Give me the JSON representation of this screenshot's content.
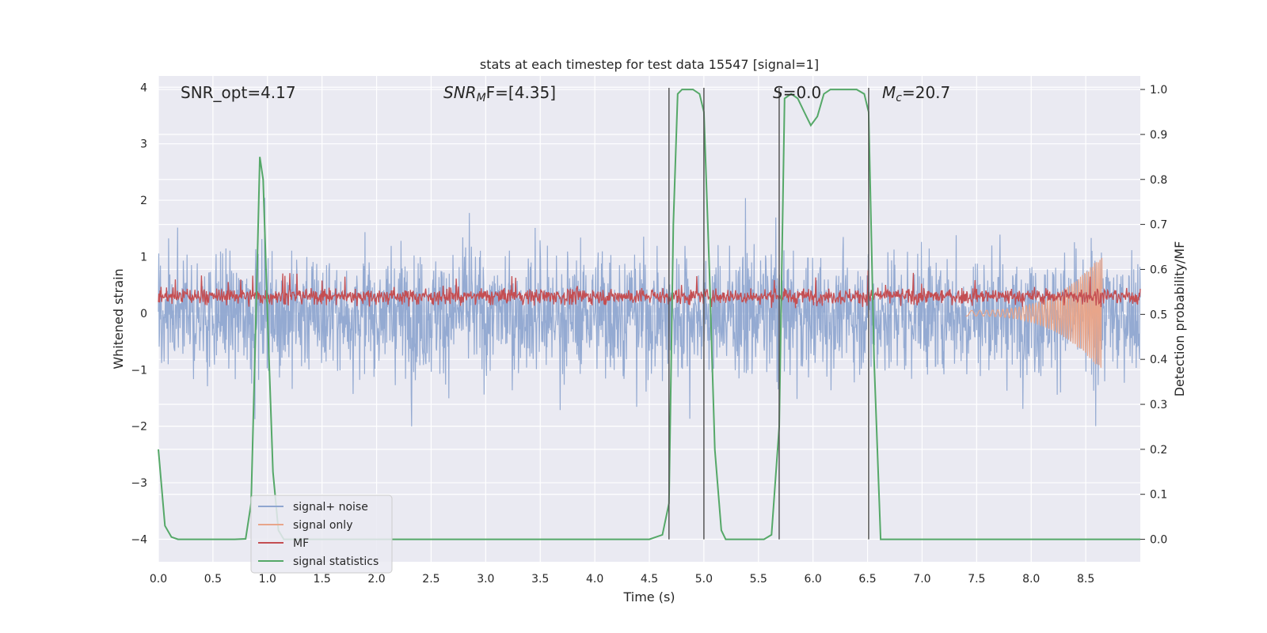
{
  "chart_data": {
    "type": "line",
    "title": "stats at each timestep for test data 15547 [signal=1]",
    "xlabel": "Time (s)",
    "ylabel": "Whitened strain",
    "y2label": "Detection probability/MF",
    "xlim": [
      0.0,
      9.0
    ],
    "ylim": [
      -4.4,
      4.2
    ],
    "y2lim": [
      -0.05,
      1.03
    ],
    "xticks": [
      "0.0",
      "0.5",
      "1.0",
      "1.5",
      "2.0",
      "2.5",
      "3.0",
      "3.5",
      "4.0",
      "4.5",
      "5.0",
      "5.5",
      "6.0",
      "6.5",
      "7.0",
      "7.5",
      "8.0",
      "8.5"
    ],
    "xtick_values": [
      0.0,
      0.5,
      1.0,
      1.5,
      2.0,
      2.5,
      3.0,
      3.5,
      4.0,
      4.5,
      5.0,
      5.5,
      6.0,
      6.5,
      7.0,
      7.5,
      8.0,
      8.5
    ],
    "yticks": [
      "−4",
      "−3",
      "−2",
      "−1",
      "0",
      "1",
      "2",
      "3",
      "4"
    ],
    "ytick_values": [
      -4,
      -3,
      -2,
      -1,
      0,
      1,
      2,
      3,
      4
    ],
    "y2ticks": [
      "0.0",
      "0.1",
      "0.2",
      "0.3",
      "0.4",
      "0.5",
      "0.6",
      "0.7",
      "0.8",
      "0.9",
      "1.0"
    ],
    "y2tick_values": [
      0.0,
      0.1,
      0.2,
      0.3,
      0.4,
      0.5,
      0.6,
      0.7,
      0.8,
      0.9,
      1.0
    ],
    "grid": true,
    "legend_placement": "lower-left",
    "annotations": [
      {
        "text": "SNR_opt=4.17",
        "x": 0.2,
        "y": 3.85
      },
      {
        "text": "SNR_MF=[4.35]",
        "x": 2.6,
        "y": 3.85,
        "base": "SNR",
        "sub": "M",
        "rest": "F=[4.35]",
        "italic_prefix": true
      },
      {
        "text": "S=0.0",
        "x": 5.62,
        "y": 3.85,
        "base": "S",
        "rest": "=0.0"
      },
      {
        "text": "M_c=20.7",
        "x": 6.62,
        "y": 3.85,
        "base": "M",
        "sub": "c",
        "rest": "=20.7"
      }
    ],
    "vlines": [
      4.68,
      5.0,
      5.69,
      6.51
    ],
    "series": [
      {
        "name": "signal+ noise",
        "color": "#8fa6d0",
        "axis": "left",
        "kind": "noise",
        "amplitude": 1.45
      },
      {
        "name": "signal only",
        "color": "#e8a58a",
        "axis": "left",
        "kind": "chirp",
        "start": 7.4,
        "end": 8.65,
        "peak": 1.0
      },
      {
        "name": "MF",
        "color": "#c44e52",
        "axis": "left",
        "kind": "mf",
        "center": 0.3
      },
      {
        "name": "signal statistics",
        "color": "#55a868",
        "axis": "right",
        "x": [
          0.0,
          0.06,
          0.12,
          0.18,
          0.3,
          0.5,
          0.7,
          0.8,
          0.85,
          0.9,
          0.93,
          0.96,
          1.0,
          1.05,
          1.1,
          1.15,
          1.2,
          1.5,
          2.0,
          3.0,
          4.0,
          4.5,
          4.62,
          4.68,
          4.72,
          4.76,
          4.8,
          4.9,
          4.96,
          5.0,
          5.05,
          5.1,
          5.16,
          5.2,
          5.3,
          5.4,
          5.55,
          5.62,
          5.69,
          5.74,
          5.8,
          5.86,
          5.92,
          5.98,
          6.04,
          6.1,
          6.16,
          6.22,
          6.3,
          6.4,
          6.47,
          6.51,
          6.56,
          6.62,
          6.7,
          7.0,
          8.0,
          9.0
        ],
        "y": [
          0.2,
          0.03,
          0.005,
          0.0,
          0.0,
          0.0,
          0.0,
          0.001,
          0.08,
          0.55,
          0.85,
          0.8,
          0.5,
          0.15,
          0.02,
          0.0,
          0.0,
          0.0,
          0.0,
          0.0,
          0.0,
          0.0,
          0.01,
          0.08,
          0.7,
          0.99,
          1.0,
          1.0,
          0.99,
          0.95,
          0.6,
          0.2,
          0.02,
          0.0,
          0.0,
          0.0,
          0.0,
          0.01,
          0.25,
          0.98,
          0.99,
          0.98,
          0.95,
          0.92,
          0.94,
          0.99,
          1.0,
          1.0,
          1.0,
          1.0,
          0.99,
          0.95,
          0.4,
          0.0,
          0.0,
          0.0,
          0.0,
          0.0
        ]
      }
    ]
  },
  "colors": {
    "plot_background": "#eaeaf2",
    "grid": "#ffffff",
    "vline": "#555555"
  }
}
